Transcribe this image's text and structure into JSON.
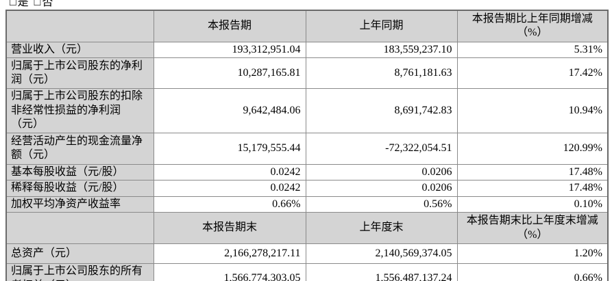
{
  "page": {
    "clipped_top_text": "□是 □否"
  },
  "colors": {
    "header_bg": "#d4d4d4",
    "label_bg": "#d4d4d4",
    "cell_bg": "#ffffff",
    "border_outer": "#6a6a6a",
    "border_inner": "#8a8a8a",
    "text": "#000000"
  },
  "table": {
    "header1": {
      "col0": "",
      "col1": "本报告期",
      "col2": "上年同期",
      "col3": "本报告期比上年同期增减\n（%）"
    },
    "rows1": [
      {
        "label": "营业收入（元）",
        "current": "193,312,951.04",
        "prior": "183,559,237.10",
        "change": "5.31%"
      },
      {
        "label": "归属于上市公司股东的净利\n润（元）",
        "current": "10,287,165.81",
        "prior": "8,761,181.63",
        "change": "17.42%"
      },
      {
        "label": "归属于上市公司股东的扣除\n非经常性损益的净利润\n（元）",
        "current": "9,642,484.06",
        "prior": "8,691,742.83",
        "change": "10.94%"
      },
      {
        "label": "经营活动产生的现金流量净\n额（元）",
        "current": "15,179,555.44",
        "prior": "-72,322,054.51",
        "change": "120.99%"
      },
      {
        "label": "基本每股收益（元/股）",
        "current": "0.0242",
        "prior": "0.0206",
        "change": "17.48%"
      },
      {
        "label": "稀释每股收益（元/股）",
        "current": "0.0242",
        "prior": "0.0206",
        "change": "17.48%"
      },
      {
        "label": "加权平均净资产收益率",
        "current": "0.66%",
        "prior": "0.56%",
        "change": "0.10%"
      }
    ],
    "header2": {
      "col0": "",
      "col1": "本报告期末",
      "col2": "上年度末",
      "col3": "本报告期末比上年度末增减\n（%）"
    },
    "rows2": [
      {
        "label": "总资产（元）",
        "current": "2,166,278,217.11",
        "prior": "2,140,569,374.05",
        "change": "1.20%"
      },
      {
        "label": "归属于上市公司股东的所有\n者权益（元）",
        "current": "1,566,774,303.05",
        "prior": "1,556,487,137.24",
        "change": "0.66%"
      }
    ]
  }
}
